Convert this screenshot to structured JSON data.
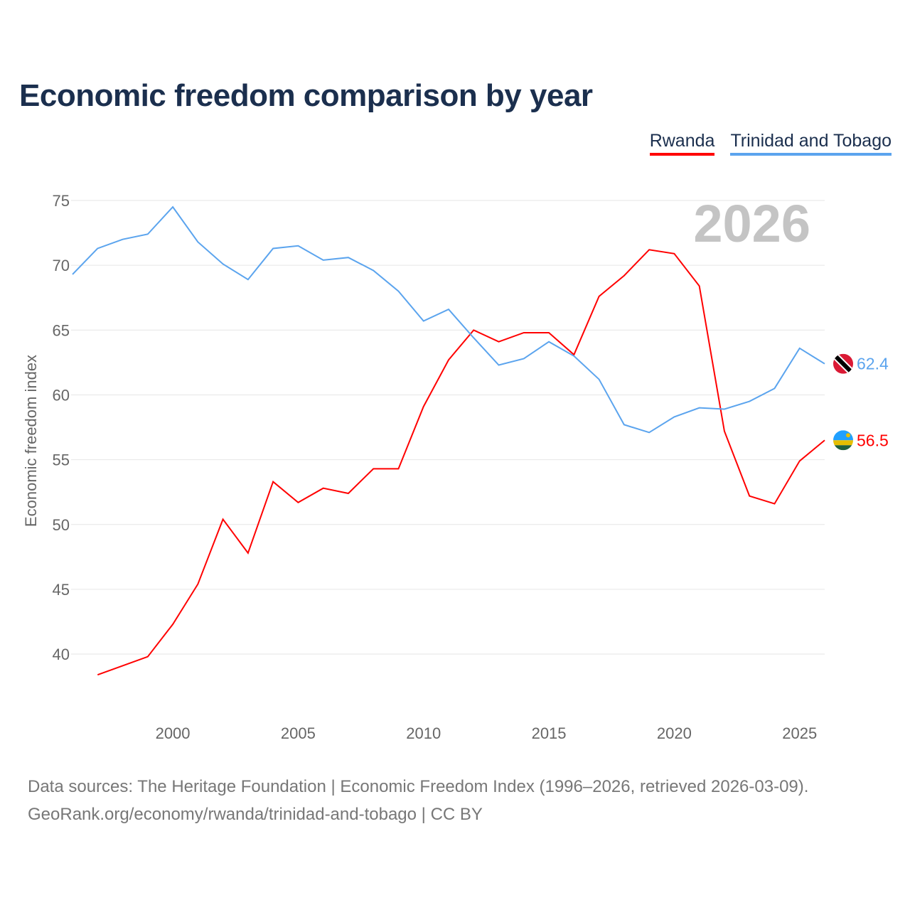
{
  "title": "Economic freedom comparison by year",
  "footer": {
    "line1": "Data sources: The Heritage Foundation | Economic Freedom Index (1996–2026, retrieved 2026-03-09).",
    "line2": "GeoRank.org/economy/rwanda/trinidad-and-tobago | CC BY"
  },
  "chart_data": {
    "type": "line",
    "title": "Economic freedom comparison by year",
    "ylabel": "Economic freedom index",
    "xlabel": "",
    "xlim": [
      1996,
      2026
    ],
    "ylim": [
      35,
      76.5
    ],
    "yticks": [
      40,
      45,
      50,
      55,
      60,
      65,
      70,
      75
    ],
    "xticks": [
      2000,
      2005,
      2010,
      2015,
      2020,
      2025
    ],
    "grid": true,
    "legend_position": "top-right",
    "year_label": "2026",
    "series": [
      {
        "name": "Rwanda",
        "color": "#ff0000",
        "end_label": "56.5",
        "x": [
          1997,
          1998,
          1999,
          2000,
          2001,
          2002,
          2003,
          2004,
          2005,
          2006,
          2007,
          2008,
          2009,
          2010,
          2011,
          2012,
          2013,
          2014,
          2015,
          2016,
          2017,
          2018,
          2019,
          2020,
          2021,
          2022,
          2023,
          2024,
          2025,
          2026
        ],
        "values": [
          38.4,
          39.1,
          39.8,
          42.3,
          45.4,
          50.4,
          47.8,
          53.3,
          51.7,
          52.8,
          52.4,
          54.3,
          54.3,
          59.1,
          62.7,
          65.0,
          64.1,
          64.8,
          64.8,
          63.1,
          67.6,
          69.2,
          71.2,
          70.9,
          68.4,
          57.2,
          52.2,
          51.6,
          54.9,
          56.5
        ]
      },
      {
        "name": "Trinidad and Tobago",
        "color": "#5ba4ee",
        "end_label": "62.4",
        "x": [
          1996,
          1997,
          1998,
          1999,
          2000,
          2001,
          2002,
          2003,
          2004,
          2005,
          2006,
          2007,
          2008,
          2009,
          2010,
          2011,
          2012,
          2013,
          2014,
          2015,
          2016,
          2017,
          2018,
          2019,
          2020,
          2021,
          2022,
          2023,
          2024,
          2025,
          2026
        ],
        "values": [
          69.3,
          71.3,
          72.0,
          72.4,
          74.5,
          71.8,
          70.1,
          68.9,
          71.3,
          71.5,
          70.4,
          70.6,
          69.6,
          68.0,
          65.7,
          66.6,
          64.4,
          62.3,
          62.8,
          64.1,
          63.0,
          61.2,
          57.7,
          57.1,
          58.3,
          59.0,
          58.9,
          59.5,
          60.5,
          63.6,
          62.4
        ]
      }
    ]
  }
}
